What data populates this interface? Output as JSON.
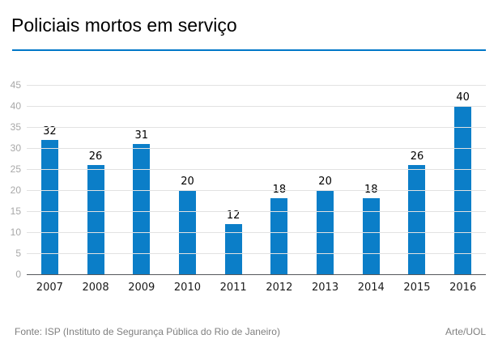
{
  "header": {
    "title": "Policiais mortos em serviço"
  },
  "chart_data": {
    "type": "bar",
    "categories": [
      "2007",
      "2008",
      "2009",
      "2010",
      "2011",
      "2012",
      "2013",
      "2014",
      "2015",
      "2016"
    ],
    "values": [
      32,
      26,
      31,
      20,
      12,
      18,
      20,
      18,
      26,
      40
    ],
    "title": "Policiais mortos em serviço",
    "xlabel": "",
    "ylabel": "",
    "ylim": [
      0,
      45
    ],
    "ytick_step": 5,
    "yticks": [
      0,
      5,
      10,
      15,
      20,
      25,
      30,
      35,
      40,
      45
    ],
    "grid": true,
    "value_labels": true,
    "legend": "none"
  },
  "colors": {
    "bar": "#0b7ec8",
    "title_divider": "#0077c8",
    "gridline": "#e2e2e2",
    "baseline": "#55585c",
    "y_tick_label": "#a8a8a8",
    "x_tick_label": "#1a1a1a",
    "value_label": "#000000",
    "footer_text": "#7f7f7f"
  },
  "footer": {
    "source": "Fonte: ISP (Instituto de Segurança Pública do Rio de Janeiro)",
    "credit": "Arte/UOL"
  }
}
